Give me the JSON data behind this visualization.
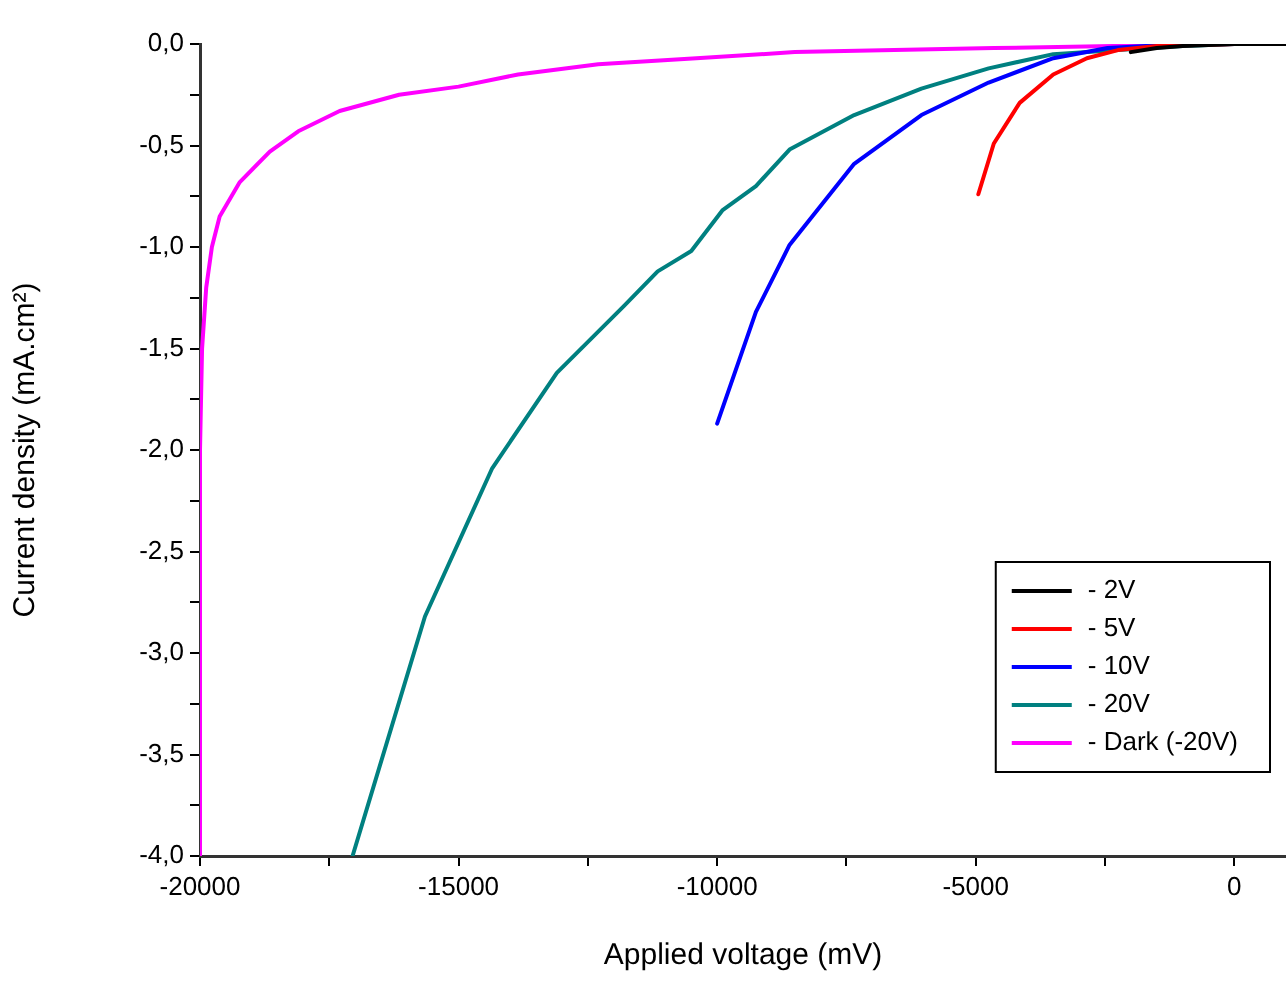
{
  "chart_data": {
    "type": "line",
    "xlabel": "Applied voltage (mV)",
    "ylabel": "Current density (mA.cm²)",
    "xlim": [
      -20000,
      1000
    ],
    "ylim": [
      -4,
      0
    ],
    "xticks": [
      -20000,
      {
        "value": -17500,
        "label": null
      },
      -15000,
      {
        "value": -12500,
        "label": null
      },
      -10000,
      {
        "value": -7500,
        "label": null
      },
      -5000,
      {
        "value": -2500,
        "label": null
      },
      0
    ],
    "yticks": [
      {
        "value": -4,
        "label": "-4,0"
      },
      {
        "value": -3.75,
        "label": null
      },
      {
        "value": -3.5,
        "label": "-3,5"
      },
      {
        "value": -3.25,
        "label": null
      },
      {
        "value": -3,
        "label": "-3,0"
      },
      {
        "value": -2.75,
        "label": null
      },
      {
        "value": -2.5,
        "label": "-2,5"
      },
      {
        "value": -2.25,
        "label": null
      },
      {
        "value": -2,
        "label": "-2,0"
      },
      {
        "value": -1.75,
        "label": null
      },
      {
        "value": -1.5,
        "label": "-1,5"
      },
      {
        "value": -1.25,
        "label": null
      },
      {
        "value": -1,
        "label": "-1,0"
      },
      {
        "value": -0.75,
        "label": null
      },
      {
        "value": -0.5,
        "label": "-0,5"
      },
      {
        "value": -0.25,
        "label": null
      },
      {
        "value": 0,
        "label": "0,0"
      }
    ],
    "grid": false,
    "legend": "bottom right",
    "marker": "none",
    "line_style": "solid",
    "series": [
      {
        "name": "- 2V",
        "color": "#000000",
        "x": [
          -2000,
          -1500,
          -1000,
          0,
          1000
        ],
        "values": [
          -0.04,
          -0.02,
          -0.01,
          0,
          0
        ]
      },
      {
        "name": "- 5V",
        "color": "#ff0000",
        "x": [
          -4950,
          -4650,
          -4150,
          -3500,
          -2850,
          -2250,
          -1500,
          0,
          1000
        ],
        "values": [
          -0.74,
          -0.49,
          -0.29,
          -0.15,
          -0.07,
          -0.03,
          -0.01,
          0,
          0
        ]
      },
      {
        "name": "- 10V",
        "color": "#0000ff",
        "x": [
          -10000,
          -9250,
          -8600,
          -7350,
          -6050,
          -4750,
          -3500,
          -2450,
          -1000,
          0,
          1000
        ],
        "values": [
          -1.87,
          -1.32,
          -0.99,
          -0.59,
          -0.35,
          -0.19,
          -0.07,
          -0.02,
          0,
          0,
          0
        ]
      },
      {
        "name": "- 20V",
        "color": "#008080",
        "x": [
          -17050,
          -15650,
          -14350,
          -13100,
          -11800,
          -11150,
          -10500,
          -9900,
          -9250,
          -8600,
          -7350,
          -6050,
          -4750,
          -3500,
          -2250,
          -1000,
          0,
          1000
        ],
        "values": [
          -4,
          -2.82,
          -2.09,
          -1.62,
          -1.29,
          -1.12,
          -1.02,
          -0.82,
          -0.7,
          -0.52,
          -0.35,
          -0.22,
          -0.12,
          -0.05,
          -0.03,
          -0.01,
          0,
          0
        ]
      },
      {
        "name": "- Dark (-20V)",
        "color": "#ff00ff",
        "x": [
          -20000,
          -20000,
          -19960,
          -19880,
          -19770,
          -19620,
          -19230,
          -18650,
          -18100,
          -17300,
          -16150,
          -15000,
          -13850,
          -12300,
          -10400,
          -8500,
          -4650,
          -2350,
          0,
          1000
        ],
        "values": [
          -4,
          -2,
          -1.5,
          -1.2,
          -1,
          -0.85,
          -0.68,
          -0.53,
          -0.43,
          -0.33,
          -0.25,
          -0.21,
          -0.15,
          -0.1,
          -0.07,
          -0.04,
          -0.02,
          -0.01,
          0,
          0
        ]
      }
    ]
  }
}
